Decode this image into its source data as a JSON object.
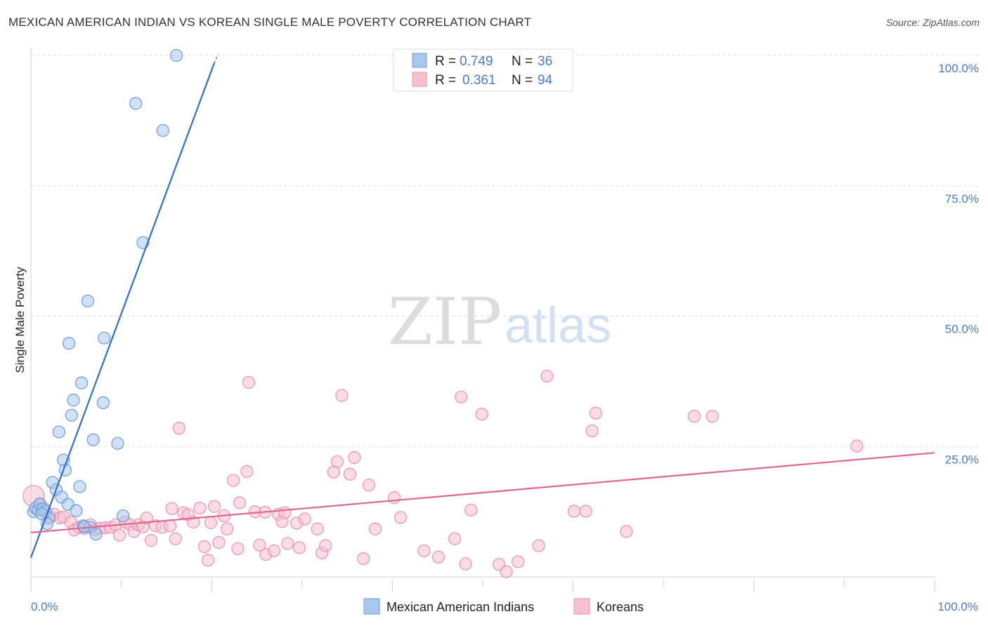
{
  "title": "MEXICAN AMERICAN INDIAN VS KOREAN SINGLE MALE POVERTY CORRELATION CHART",
  "source": "Source: ZipAtlas.com",
  "watermark": {
    "part1": "ZIP",
    "part2": "atlas"
  },
  "colors": {
    "blue_fill": "#a9c6ee",
    "blue_stroke": "#6f9bd6",
    "blue_line": "#2f6fd0",
    "pink_fill": "#f7bfd0",
    "pink_stroke": "#e893ae",
    "pink_line": "#e0668f",
    "axis_text": "#4a7bc8",
    "grid": "#dddddd"
  },
  "legend": {
    "r_label": "R =",
    "n_label": "N =",
    "entries": [
      {
        "r": "0.749",
        "n": "36"
      },
      {
        "r": "0.361",
        "n": "94"
      }
    ]
  },
  "chart_data": {
    "type": "scatter",
    "title": "MEXICAN AMERICAN INDIAN VS KOREAN SINGLE MALE POVERTY CORRELATION CHART",
    "xlabel": "",
    "ylabel": "Single Male Poverty",
    "xlim": [
      0,
      100
    ],
    "ylim": [
      0,
      105
    ],
    "x_tick_labels": [
      "0.0%",
      "100.0%"
    ],
    "y_ticks": [
      25,
      50,
      75,
      100
    ],
    "y_tick_labels": [
      "25.0%",
      "50.0%",
      "75.0%",
      "100.0%"
    ],
    "grid": true,
    "legend_position": "top-center",
    "series": [
      {
        "name": "Mexican American Indians",
        "r": 0.749,
        "n": 36,
        "trend": {
          "x": [
            0,
            20.3
          ],
          "y": [
            3.7,
            98.6
          ]
        },
        "points": [
          [
            0.3,
            12.5
          ],
          [
            0.5,
            13.2
          ],
          [
            0.8,
            12.8
          ],
          [
            1.0,
            14.0
          ],
          [
            1.3,
            13.0
          ],
          [
            1.6,
            12.6
          ],
          [
            2.0,
            11.3
          ],
          [
            1.8,
            10.2
          ],
          [
            2.4,
            18.1
          ],
          [
            2.8,
            16.7
          ],
          [
            3.1,
            27.8
          ],
          [
            3.4,
            15.3
          ],
          [
            3.6,
            22.4
          ],
          [
            3.8,
            20.5
          ],
          [
            4.1,
            13.9
          ],
          [
            4.2,
            44.8
          ],
          [
            4.5,
            31.0
          ],
          [
            4.7,
            33.9
          ],
          [
            5.0,
            12.7
          ],
          [
            5.4,
            17.3
          ],
          [
            5.6,
            37.2
          ],
          [
            5.8,
            9.8
          ],
          [
            6.3,
            52.9
          ],
          [
            6.6,
            9.5
          ],
          [
            6.9,
            26.3
          ],
          [
            7.2,
            8.2
          ],
          [
            8.0,
            33.4
          ],
          [
            8.1,
            45.8
          ],
          [
            9.6,
            25.6
          ],
          [
            10.2,
            11.7
          ],
          [
            11.6,
            90.8
          ],
          [
            12.4,
            64.1
          ],
          [
            14.6,
            85.6
          ],
          [
            16.1,
            100.0
          ],
          [
            5.9,
            9.6
          ],
          [
            1.2,
            12.1
          ]
        ]
      },
      {
        "name": "Koreans",
        "r": 0.361,
        "n": 94,
        "trend": {
          "x": [
            0,
            100
          ],
          "y": [
            8.5,
            23.8
          ]
        },
        "points": [
          [
            0.3,
            15.5
          ],
          [
            0.8,
            13.0
          ],
          [
            1.0,
            13.8
          ],
          [
            1.4,
            13.2
          ],
          [
            1.7,
            12.2
          ],
          [
            2.1,
            11.6
          ],
          [
            2.6,
            12.0
          ],
          [
            3.2,
            11.3
          ],
          [
            3.6,
            11.5
          ],
          [
            4.4,
            10.5
          ],
          [
            4.8,
            9.0
          ],
          [
            5.3,
            9.5
          ],
          [
            5.9,
            9.3
          ],
          [
            6.6,
            10.0
          ],
          [
            7.1,
            9.0
          ],
          [
            7.6,
            9.3
          ],
          [
            8.2,
            9.4
          ],
          [
            8.8,
            9.5
          ],
          [
            9.4,
            10.0
          ],
          [
            9.8,
            8.0
          ],
          [
            10.4,
            10.5
          ],
          [
            11.0,
            10.0
          ],
          [
            11.4,
            8.7
          ],
          [
            11.9,
            10.0
          ],
          [
            12.4,
            9.6
          ],
          [
            12.8,
            11.3
          ],
          [
            13.3,
            7.0
          ],
          [
            13.8,
            9.8
          ],
          [
            14.5,
            9.5
          ],
          [
            15.4,
            9.8
          ],
          [
            15.6,
            13.1
          ],
          [
            16.0,
            7.3
          ],
          [
            16.4,
            28.5
          ],
          [
            16.9,
            12.3
          ],
          [
            17.4,
            11.9
          ],
          [
            18.0,
            10.5
          ],
          [
            18.7,
            13.2
          ],
          [
            19.2,
            5.8
          ],
          [
            19.6,
            3.2
          ],
          [
            19.9,
            10.4
          ],
          [
            20.3,
            13.5
          ],
          [
            20.8,
            6.6
          ],
          [
            21.4,
            11.7
          ],
          [
            21.7,
            9.2
          ],
          [
            22.4,
            18.5
          ],
          [
            22.9,
            5.4
          ],
          [
            23.1,
            14.2
          ],
          [
            23.9,
            20.2
          ],
          [
            24.1,
            37.3
          ],
          [
            24.8,
            12.5
          ],
          [
            25.3,
            6.1
          ],
          [
            26.0,
            4.3
          ],
          [
            25.9,
            12.4
          ],
          [
            26.9,
            5.0
          ],
          [
            27.4,
            12.0
          ],
          [
            27.8,
            10.6
          ],
          [
            28.1,
            12.3
          ],
          [
            28.4,
            6.4
          ],
          [
            29.4,
            10.3
          ],
          [
            29.7,
            5.6
          ],
          [
            30.3,
            11.1
          ],
          [
            31.7,
            9.2
          ],
          [
            32.2,
            4.6
          ],
          [
            32.6,
            6.0
          ],
          [
            33.5,
            20.1
          ],
          [
            33.9,
            22.1
          ],
          [
            34.4,
            34.8
          ],
          [
            35.3,
            19.7
          ],
          [
            35.8,
            22.9
          ],
          [
            36.8,
            3.5
          ],
          [
            37.4,
            17.6
          ],
          [
            38.1,
            9.2
          ],
          [
            40.2,
            15.2
          ],
          [
            40.9,
            11.4
          ],
          [
            43.5,
            5.0
          ],
          [
            45.1,
            3.8
          ],
          [
            46.9,
            7.3
          ],
          [
            47.6,
            34.5
          ],
          [
            48.1,
            2.5
          ],
          [
            48.7,
            12.8
          ],
          [
            49.9,
            31.2
          ],
          [
            51.8,
            2.4
          ],
          [
            53.9,
            2.9
          ],
          [
            56.2,
            6.0
          ],
          [
            57.1,
            38.5
          ],
          [
            60.1,
            12.6
          ],
          [
            61.4,
            12.6
          ],
          [
            62.1,
            28.0
          ],
          [
            62.5,
            31.4
          ],
          [
            65.9,
            8.7
          ],
          [
            73.4,
            30.8
          ],
          [
            75.4,
            30.8
          ],
          [
            91.4,
            25.1
          ],
          [
            52.6,
            1.0
          ]
        ]
      }
    ]
  }
}
